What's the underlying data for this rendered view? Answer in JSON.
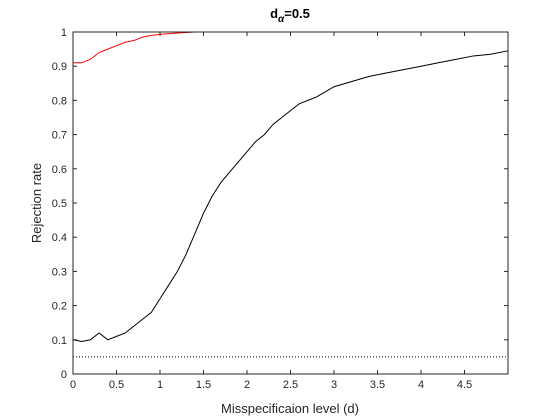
{
  "chart_data": {
    "type": "line",
    "title": {
      "base": "d",
      "subscript": "α",
      "value": "=0.5"
    },
    "xlabel": "Misspecificaion level (d)",
    "ylabel": "Rejection rate",
    "xlim": [
      0,
      5
    ],
    "ylim": [
      0,
      1
    ],
    "xticks": [
      "0",
      "0.5",
      "1",
      "1.5",
      "2",
      "2.5",
      "3",
      "3.5",
      "4",
      "4.5"
    ],
    "yticks": [
      "0",
      "0.1",
      "0.2",
      "0.3",
      "0.4",
      "0.5",
      "0.6",
      "0.7",
      "0.8",
      "0.9",
      "1"
    ],
    "xtick_values": [
      0,
      0.5,
      1,
      1.5,
      2,
      2.5,
      3,
      3.5,
      4,
      4.5
    ],
    "ytick_values": [
      0,
      0.1,
      0.2,
      0.3,
      0.4,
      0.5,
      0.6,
      0.7,
      0.8,
      0.9,
      1
    ],
    "grid": false,
    "legend": "none",
    "series": [
      {
        "color": "#ff0000",
        "style": "solid",
        "x": [
          0,
          0.1,
          0.2,
          0.3,
          0.4,
          0.5,
          0.6,
          0.7,
          0.8,
          0.9,
          1.0,
          1.2,
          1.4,
          1.6,
          2.0,
          3.0,
          4.0,
          5.0
        ],
        "y": [
          0.91,
          0.91,
          0.92,
          0.94,
          0.95,
          0.96,
          0.97,
          0.975,
          0.985,
          0.99,
          0.993,
          0.997,
          1.0,
          1.0,
          1.0,
          1.0,
          1.0,
          1.0
        ]
      },
      {
        "color": "#000000",
        "style": "solid",
        "x": [
          0,
          0.1,
          0.2,
          0.3,
          0.4,
          0.5,
          0.6,
          0.7,
          0.8,
          0.9,
          1.0,
          1.1,
          1.2,
          1.3,
          1.4,
          1.5,
          1.6,
          1.7,
          1.8,
          1.9,
          2.0,
          2.1,
          2.2,
          2.3,
          2.4,
          2.5,
          2.6,
          2.7,
          2.8,
          2.9,
          3.0,
          3.2,
          3.4,
          3.6,
          3.8,
          4.0,
          4.2,
          4.4,
          4.6,
          4.8,
          5.0
        ],
        "y": [
          0.1,
          0.095,
          0.1,
          0.12,
          0.1,
          0.11,
          0.12,
          0.14,
          0.16,
          0.18,
          0.22,
          0.26,
          0.3,
          0.35,
          0.41,
          0.47,
          0.52,
          0.56,
          0.59,
          0.62,
          0.65,
          0.68,
          0.7,
          0.73,
          0.75,
          0.77,
          0.79,
          0.8,
          0.81,
          0.825,
          0.84,
          0.855,
          0.87,
          0.88,
          0.89,
          0.9,
          0.91,
          0.92,
          0.93,
          0.935,
          0.945
        ]
      },
      {
        "color": "#000000",
        "style": "dotted",
        "x": [
          0,
          5
        ],
        "y": [
          0.05,
          0.05
        ]
      }
    ]
  }
}
